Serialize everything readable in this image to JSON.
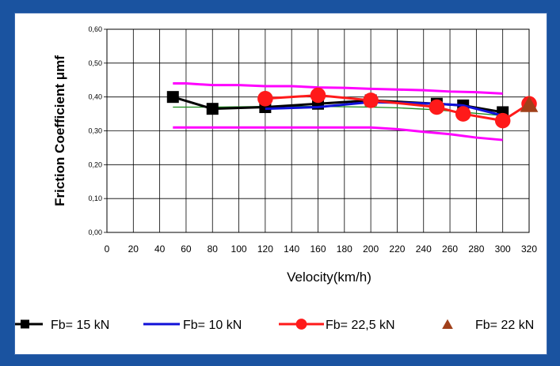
{
  "chart_data": {
    "type": "line",
    "title": "",
    "xlabel": "Velocity(km/h)",
    "ylabel": "Friction Coefficient μmf",
    "x_ticks": [
      "0",
      "20",
      "40",
      "60",
      "80",
      "100",
      "120",
      "140",
      "160",
      "180",
      "200",
      "220",
      "240",
      "260",
      "280",
      "300",
      "320"
    ],
    "y_ticks": [
      "0,00",
      "0,10",
      "0,20",
      "0,30",
      "0,40",
      "0,50",
      "0,60"
    ],
    "xlim": [
      0,
      320
    ],
    "ylim": [
      0,
      0.6
    ],
    "grid": true,
    "legend_position": "bottom",
    "series": [
      {
        "name": "Fb= 15  kN",
        "color": "#000000",
        "marker": "square",
        "x": [
          50,
          80,
          120,
          160,
          200,
          250,
          270,
          300
        ],
        "y": [
          0.4,
          0.365,
          0.37,
          0.38,
          0.39,
          0.38,
          0.375,
          0.355
        ]
      },
      {
        "name": "Fb= 10  kN",
        "color": "#1010d8",
        "marker": "none",
        "x": [
          120,
          160,
          200,
          250,
          270,
          300
        ],
        "y": [
          0.365,
          0.37,
          0.385,
          0.38,
          0.375,
          0.345
        ]
      },
      {
        "name": "Fb= 22,5 kN",
        "color": "#ff1a1a",
        "marker": "circle",
        "x": [
          120,
          160,
          200,
          250,
          270,
          300,
          320
        ],
        "y": [
          0.395,
          0.405,
          0.39,
          0.37,
          0.35,
          0.33,
          0.38
        ]
      },
      {
        "name": "Fb= 22  kN",
        "color": "#a0401a",
        "marker": "triangle",
        "x": [
          320
        ],
        "y": [
          0.375
        ]
      }
    ],
    "extra_lines": [
      {
        "kind": "upper-envelope",
        "color": "#ff00ff",
        "x": [
          50,
          60,
          80,
          100,
          120,
          140,
          160,
          180,
          200,
          220,
          240,
          260,
          280,
          300
        ],
        "y": [
          0.44,
          0.44,
          0.435,
          0.435,
          0.432,
          0.432,
          0.428,
          0.427,
          0.424,
          0.422,
          0.42,
          0.416,
          0.414,
          0.41
        ]
      },
      {
        "kind": "lower-envelope",
        "color": "#ff00ff",
        "x": [
          50,
          80,
          120,
          160,
          200,
          220,
          240,
          260,
          280,
          300
        ],
        "y": [
          0.31,
          0.31,
          0.31,
          0.31,
          0.31,
          0.305,
          0.297,
          0.29,
          0.28,
          0.273
        ]
      },
      {
        "kind": "mean",
        "color": "#1a8a1a",
        "x": [
          50,
          80,
          120,
          160,
          200,
          220,
          250,
          270,
          300
        ],
        "y": [
          0.37,
          0.37,
          0.372,
          0.372,
          0.37,
          0.368,
          0.362,
          0.355,
          0.345
        ]
      }
    ]
  }
}
